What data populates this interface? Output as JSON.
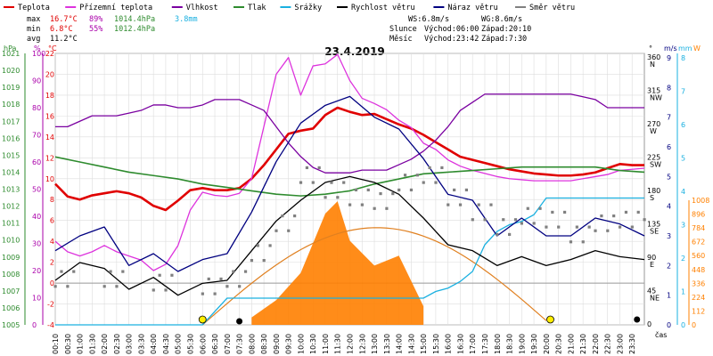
{
  "legend": [
    {
      "label": "Teplota",
      "color": "#e00000"
    },
    {
      "label": "Přízemní teplota",
      "color": "#dd33dd"
    },
    {
      "label": "Vlhkost",
      "color": "#7a00a0"
    },
    {
      "label": "Tlak",
      "color": "#2e8b2e"
    },
    {
      "label": "Srážky",
      "color": "#1ab0e0"
    },
    {
      "label": "Rychlost větru",
      "color": "#000000"
    },
    {
      "label": "Náraz větru",
      "color": "#000080"
    },
    {
      "label": "Směr větru",
      "color": "#808080"
    }
  ],
  "stats": {
    "max_label": "max",
    "max_temp": "16.7°C",
    "max_hum": "89%",
    "max_press": "1014.4hPa",
    "max_rain": "3.8mm",
    "min_label": "min",
    "min_temp": "6.8°C",
    "min_hum": "55%",
    "min_press": "1012.4hPa",
    "avg_label": "avg",
    "avg_temp": "11.2°C"
  },
  "wind": {
    "ws": "WS:6.8m/s",
    "wg": "WG:8.6m/s"
  },
  "sun": {
    "label": "Slunce",
    "rise": "Východ:06:00",
    "set": "Západ:20:10"
  },
  "moon": {
    "label": "Měsíc",
    "rise": "Východ:23:42",
    "set": "Západ:7:30"
  },
  "date": "23.4.2019",
  "axes": {
    "hpa_unit": "hPa",
    "pct_unit": "%",
    "c_unit": "°C",
    "deg_unit": "°",
    "ms_unit": "m/s",
    "mm_unit": "mm",
    "w_unit": "W",
    "time_unit": "čas",
    "hpa": [
      "1021",
      "1020",
      "1019",
      "1018",
      "1017",
      "1016",
      "1015",
      "1014",
      "1013",
      "1012",
      "1011",
      "1010",
      "1009",
      "1008",
      "1007",
      "1006",
      "1005"
    ],
    "pct": [
      "100",
      "90",
      "80",
      "70",
      "60",
      "50",
      "40",
      "30",
      "20",
      "10",
      "0"
    ],
    "c": [
      "22",
      "20",
      "18",
      "16",
      "14",
      "12",
      "10",
      "8",
      "6",
      "4",
      "2",
      "0",
      "-2",
      "-4"
    ],
    "dir": [
      [
        "360",
        "N"
      ],
      [
        "315",
        "NW"
      ],
      [
        "270",
        "W"
      ],
      [
        "225",
        "SW"
      ],
      [
        "180",
        "S"
      ],
      [
        "135",
        "SE"
      ],
      [
        "90",
        "E"
      ],
      [
        "45",
        "NE"
      ],
      [
        "0",
        ""
      ]
    ],
    "ms": [
      "9",
      "8",
      "7",
      "6",
      "5",
      "4",
      "3",
      "2",
      "1",
      "0"
    ],
    "mm": [
      "8",
      "7",
      "6",
      "5",
      "4",
      "3",
      "2",
      "1",
      "0"
    ],
    "wm2": [
      "1008",
      "896",
      "784",
      "672",
      "560",
      "448",
      "336",
      "224",
      "112",
      "0"
    ],
    "times": [
      "00:10",
      "00:30",
      "01:00",
      "01:30",
      "02:00",
      "02:30",
      "03:00",
      "03:30",
      "04:00",
      "04:30",
      "05:00",
      "05:30",
      "06:00",
      "06:30",
      "07:00",
      "07:30",
      "08:00",
      "08:30",
      "09:00",
      "09:30",
      "10:00",
      "10:30",
      "11:00",
      "11:30",
      "12:00",
      "12:30",
      "13:00",
      "13:30",
      "14:00",
      "14:30",
      "15:00",
      "15:30",
      "16:00",
      "16:30",
      "17:00",
      "17:30",
      "18:00",
      "18:30",
      "19:00",
      "19:30",
      "20:00",
      "20:30",
      "21:00",
      "21:30",
      "22:00",
      "22:30",
      "23:00",
      "23:30"
    ]
  },
  "chart_data": {
    "type": "line",
    "title": "23.4.2019",
    "x_unit": "hour",
    "series": [
      {
        "name": "Teplota",
        "unit": "°C",
        "color": "#e00000",
        "x": [
          0,
          0.5,
          1,
          1.5,
          2,
          2.5,
          3,
          3.5,
          4,
          4.5,
          5,
          5.5,
          6,
          6.5,
          7,
          7.5,
          8,
          8.5,
          9,
          9.5,
          10,
          10.5,
          11,
          11.5,
          12,
          12.5,
          13,
          13.5,
          14,
          14.5,
          15,
          15.5,
          16,
          16.5,
          17,
          17.5,
          18,
          18.5,
          19,
          19.5,
          20,
          20.5,
          21,
          21.5,
          22,
          22.5,
          23,
          23.5,
          24
        ],
        "y": [
          9.5,
          8.3,
          8.0,
          8.4,
          8.6,
          8.8,
          8.6,
          8.2,
          7.4,
          7.0,
          7.9,
          8.9,
          9.1,
          8.9,
          8.9,
          9.1,
          10.0,
          11.3,
          12.8,
          14.3,
          14.6,
          14.8,
          16.1,
          16.8,
          16.4,
          16.1,
          16.2,
          15.7,
          15.2,
          14.8,
          14.2,
          13.5,
          12.8,
          12.1,
          11.8,
          11.5,
          11.2,
          10.9,
          10.7,
          10.5,
          10.4,
          10.3,
          10.3,
          10.4,
          10.6,
          11.0,
          11.4,
          11.3,
          11.3
        ]
      },
      {
        "name": "Přízemní teplota",
        "unit": "°C",
        "color": "#dd33dd",
        "x": [
          0,
          0.5,
          1,
          1.5,
          2,
          2.5,
          3,
          3.5,
          4,
          4.5,
          5,
          5.5,
          6,
          6.5,
          7,
          7.5,
          8,
          8.5,
          9,
          9.5,
          10,
          10.5,
          11,
          11.5,
          12,
          12.5,
          13,
          13.5,
          14,
          14.5,
          15,
          15.5,
          16,
          16.5,
          17,
          17.5,
          18,
          18.5,
          19,
          19.5,
          20,
          20.5,
          21,
          21.5,
          22,
          22.5,
          23,
          23.5,
          24
        ],
        "y": [
          4.0,
          3.0,
          2.6,
          3.0,
          3.6,
          3.0,
          2.6,
          2.2,
          1.2,
          1.8,
          3.6,
          7.0,
          8.7,
          8.4,
          8.3,
          8.6,
          10.0,
          15.0,
          20.0,
          21.6,
          18.0,
          20.8,
          21.0,
          21.9,
          19.4,
          17.7,
          17.2,
          16.6,
          15.6,
          14.9,
          13.4,
          12.8,
          11.8,
          11.2,
          10.8,
          10.5,
          10.2,
          10.0,
          9.9,
          9.8,
          9.8,
          9.8,
          9.8,
          10.0,
          10.2,
          10.4,
          10.8,
          10.9,
          11.0
        ]
      },
      {
        "name": "Vlhkost",
        "unit": "%",
        "color": "#7a00a0",
        "x": [
          0,
          0.5,
          1,
          1.5,
          2,
          2.5,
          3,
          3.5,
          4,
          4.5,
          5,
          5.5,
          6,
          6.5,
          7,
          7.5,
          8,
          8.5,
          9,
          9.5,
          10,
          10.5,
          11,
          11.5,
          12,
          12.5,
          13,
          13.5,
          14,
          14.5,
          15,
          15.5,
          16,
          16.5,
          17,
          17.5,
          18,
          18.5,
          19,
          19.5,
          20,
          20.5,
          21,
          21.5,
          22,
          22.5,
          23,
          23.5,
          24
        ],
        "y": [
          73,
          73,
          75,
          77,
          77,
          77,
          78,
          79,
          81,
          81,
          80,
          80,
          81,
          83,
          83,
          83,
          81,
          79,
          73,
          67,
          62,
          58,
          56,
          56,
          56,
          57,
          57,
          57,
          59,
          61,
          64,
          68,
          73,
          79,
          82,
          85,
          85,
          85,
          85,
          85,
          85,
          85,
          85,
          84,
          83,
          80,
          80,
          80,
          80
        ]
      },
      {
        "name": "Tlak",
        "unit": "hPa",
        "color": "#2e8b2e",
        "x": [
          0,
          1,
          2,
          3,
          4,
          5,
          6,
          7,
          8,
          9,
          10,
          11,
          12,
          13,
          14,
          15,
          16,
          17,
          18,
          19,
          20,
          21,
          22,
          23,
          24
        ],
        "y": [
          1014.9,
          1014.6,
          1014.3,
          1014.0,
          1013.8,
          1013.6,
          1013.3,
          1013.1,
          1012.9,
          1012.7,
          1012.6,
          1012.7,
          1012.9,
          1013.3,
          1013.6,
          1013.9,
          1014.0,
          1014.1,
          1014.2,
          1014.3,
          1014.3,
          1014.3,
          1014.3,
          1014.1,
          1014.0
        ]
      },
      {
        "name": "Srážky",
        "unit": "mm",
        "color": "#1ab0e0",
        "x": [
          0,
          6,
          7,
          8,
          9,
          10,
          11,
          12,
          13,
          14,
          15,
          15.5,
          16,
          16.5,
          17,
          17.5,
          18,
          18.5,
          19,
          19.5,
          20,
          21,
          22,
          23,
          24
        ],
        "y": [
          0,
          0,
          0.8,
          0.8,
          0.8,
          0.8,
          0.8,
          0.8,
          0.8,
          0.8,
          0.8,
          1.0,
          1.1,
          1.3,
          1.6,
          2.4,
          2.8,
          3.0,
          3.1,
          3.3,
          3.8,
          3.8,
          3.8,
          3.8,
          3.8
        ]
      },
      {
        "name": "Rychlost větru",
        "unit": "m/s",
        "color": "#000000",
        "x": [
          0,
          1,
          2,
          3,
          4,
          5,
          6,
          7,
          8,
          9,
          10,
          11,
          12,
          13,
          14,
          15,
          16,
          17,
          18,
          19,
          20,
          21,
          22,
          23,
          24
        ],
        "y": [
          1.5,
          2.1,
          1.9,
          1.2,
          1.6,
          1.0,
          1.4,
          1.5,
          2.5,
          3.5,
          4.2,
          4.8,
          5.0,
          4.8,
          4.4,
          3.6,
          2.7,
          2.5,
          2.0,
          2.3,
          2.0,
          2.2,
          2.5,
          2.3,
          2.2
        ]
      },
      {
        "name": "Náraz větru",
        "unit": "m/s",
        "color": "#000080",
        "x": [
          0,
          1,
          2,
          3,
          4,
          5,
          6,
          7,
          8,
          9,
          10,
          11,
          12,
          13,
          14,
          15,
          16,
          17,
          18,
          19,
          20,
          21,
          22,
          23,
          24
        ],
        "y": [
          2.5,
          3.0,
          3.3,
          2.0,
          2.4,
          1.8,
          2.2,
          2.4,
          3.8,
          5.5,
          6.8,
          7.4,
          7.7,
          7.0,
          6.6,
          5.6,
          4.4,
          4.2,
          3.0,
          3.6,
          3.0,
          3.0,
          3.6,
          3.4,
          3.0
        ]
      },
      {
        "name": "Směr větru",
        "unit": "°",
        "color": "#808080",
        "x": [
          0,
          2,
          4,
          6,
          7,
          8,
          9,
          10,
          11,
          12,
          13,
          14,
          15,
          16,
          17,
          18,
          19,
          20,
          21,
          22,
          23,
          24
        ],
        "y": [
          60,
          60,
          55,
          50,
          60,
          95,
          135,
          200,
          180,
          170,
          165,
          190,
          200,
          170,
          150,
          130,
          145,
          140,
          120,
          135,
          140,
          150
        ]
      }
    ],
    "solar_radiation": {
      "name": "",
      "unit": "W",
      "color": "#ff8000",
      "x": [
        8,
        9,
        10,
        11,
        11.5,
        12,
        13,
        14,
        15
      ],
      "y": [
        60,
        200,
        420,
        900,
        1000,
        680,
        480,
        560,
        150
      ]
    },
    "sun_curve": {
      "peak_x": 14,
      "peak_y": 1008
    },
    "ylim_temp": [
      -4,
      22
    ],
    "ylim_hum": [
      0,
      100
    ],
    "ylim_press": [
      1005,
      1021
    ]
  }
}
